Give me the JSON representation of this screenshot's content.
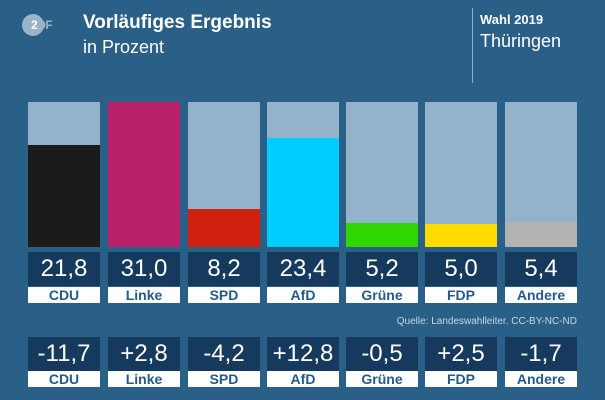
{
  "header": {
    "logo": "ZDF",
    "title": "Vorläufiges Ergebnis",
    "subtitle": "in Prozent",
    "year": "Wahl 2019",
    "region": "Thüringen"
  },
  "chart_data": {
    "type": "bar",
    "categories": [
      "CDU",
      "Linke",
      "SPD",
      "AfD",
      "Grüne",
      "FDP",
      "Andere"
    ],
    "values": [
      21.8,
      31.0,
      8.2,
      23.4,
      5.2,
      5.0,
      5.4
    ],
    "value_labels": [
      "21,8",
      "31,0",
      "8,2",
      "23,4",
      "5,2",
      "5,0",
      "5,4"
    ],
    "colors": [
      "#1b1b1b",
      "#b8206a",
      "#d02110",
      "#00cdff",
      "#2fd600",
      "#ffdc00",
      "#b3b3b3"
    ],
    "track_color": "#94b2c9",
    "ylim": [
      0,
      31.0
    ],
    "change_values": [
      -11.7,
      2.8,
      -4.2,
      12.8,
      -0.5,
      2.5,
      -1.7
    ],
    "change_labels": [
      "-11,7",
      "+2,8",
      "-4,2",
      "+12,8",
      "-0,5",
      "+2,5",
      "-1,7"
    ]
  },
  "source": "Quelle: Landeswahlleiter. CC-BY-NC-ND"
}
